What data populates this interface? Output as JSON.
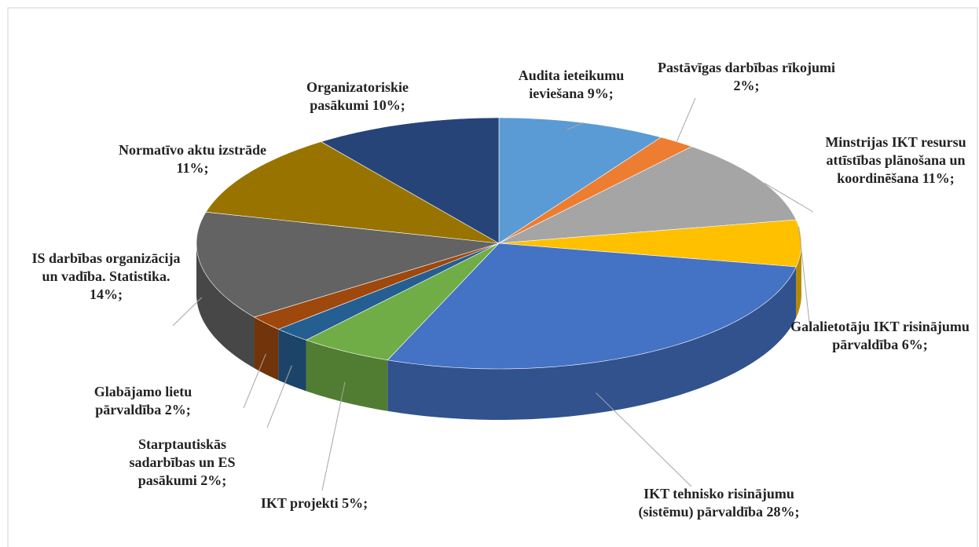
{
  "chart_data": {
    "type": "pie3d",
    "categories": [
      "Audita ieteikumu ieviešana",
      "Pastāvīgas darbības rīkojumi",
      "Minstrijas IKT resursu attīstības plānošana un koordinēšana",
      "Galalietotāju IKT risinājumu pārvaldība",
      "IKT tehnisko risinājumu (sistēmu) pārvaldība",
      "IKT projekti",
      "Starptautiskās sadarbības un ES pasākumi",
      "Glabājamo lietu pārvaldība",
      "IS darbības organizācija un vadība. Statistika.",
      "Normatīvo aktu izstrāde",
      "Organizatoriskie pasākumi"
    ],
    "values": [
      9,
      2,
      11,
      6,
      28,
      5,
      2,
      2,
      14,
      11,
      10
    ],
    "value_labels": [
      "9%;",
      "2%;",
      "11%;",
      "6%;",
      "28%;",
      "5%;",
      "2%;",
      "2%;",
      "14%;",
      "11%;",
      "10%;"
    ],
    "colors": [
      "#5b9bd5",
      "#ed7d31",
      "#a5a5a5",
      "#ffc000",
      "#4472c4",
      "#70ad47",
      "#255e91",
      "#9e480e",
      "#636363",
      "#997300",
      "#264478"
    ]
  }
}
